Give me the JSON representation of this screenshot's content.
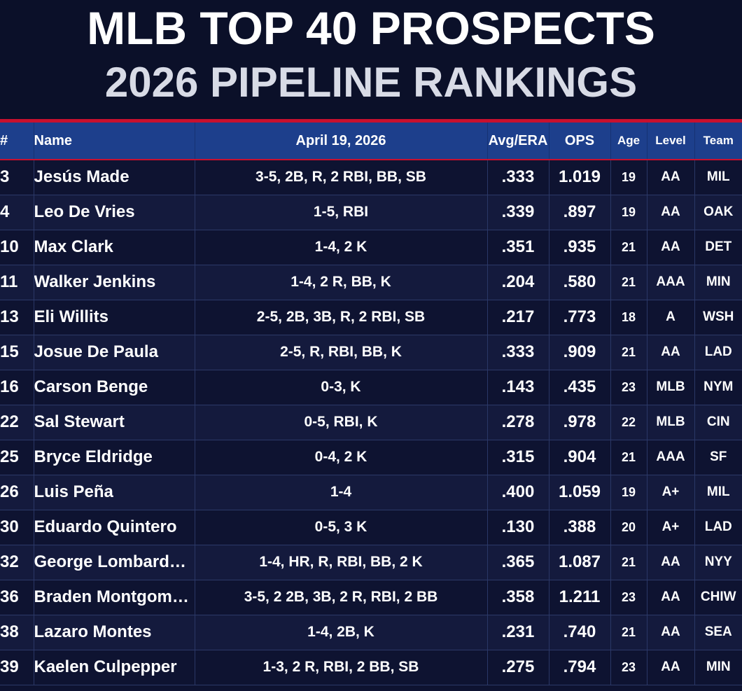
{
  "header": {
    "title_line1": "MLB TOP 40 PROSPECTS",
    "title_line2": "2026 PIPELINE RANKINGS"
  },
  "table": {
    "columns": {
      "rank": "#",
      "name": "Name",
      "date": "April 19, 2026",
      "avg": "Avg/ERA",
      "ops": "OPS",
      "age": "Age",
      "level": "Level",
      "team": "Team"
    },
    "rows": [
      {
        "rank": "3",
        "name": "Jesús Made",
        "line": "3-5, 2B, R, 2 RBI, BB, SB",
        "avg": ".333",
        "ops": "1.019",
        "age": "19",
        "level": "AA",
        "team": "MIL"
      },
      {
        "rank": "4",
        "name": "Leo De Vries",
        "line": "1-5, RBI",
        "avg": ".339",
        "ops": ".897",
        "age": "19",
        "level": "AA",
        "team": "OAK"
      },
      {
        "rank": "10",
        "name": "Max Clark",
        "line": "1-4, 2 K",
        "avg": ".351",
        "ops": ".935",
        "age": "21",
        "level": "AA",
        "team": "DET"
      },
      {
        "rank": "11",
        "name": "Walker Jenkins",
        "line": "1-4, 2 R, BB, K",
        "avg": ".204",
        "ops": ".580",
        "age": "21",
        "level": "AAA",
        "team": "MIN"
      },
      {
        "rank": "13",
        "name": "Eli Willits",
        "line": "2-5, 2B, 3B, R, 2 RBI, SB",
        "avg": ".217",
        "ops": ".773",
        "age": "18",
        "level": "A",
        "team": "WSH"
      },
      {
        "rank": "15",
        "name": "Josue De Paula",
        "line": "2-5, R, RBI, BB, K",
        "avg": ".333",
        "ops": ".909",
        "age": "21",
        "level": "AA",
        "team": "LAD"
      },
      {
        "rank": "16",
        "name": "Carson Benge",
        "line": "0-3, K",
        "avg": ".143",
        "ops": ".435",
        "age": "23",
        "level": "MLB",
        "team": "NYM"
      },
      {
        "rank": "22",
        "name": "Sal Stewart",
        "line": "0-5, RBI, K",
        "avg": ".278",
        "ops": ".978",
        "age": "22",
        "level": "MLB",
        "team": "CIN"
      },
      {
        "rank": "25",
        "name": "Bryce Eldridge",
        "line": "0-4, 2 K",
        "avg": ".315",
        "ops": ".904",
        "age": "21",
        "level": "AAA",
        "team": "SF"
      },
      {
        "rank": "26",
        "name": "Luis Peña",
        "line": "1-4",
        "avg": ".400",
        "ops": "1.059",
        "age": "19",
        "level": "A+",
        "team": "MIL"
      },
      {
        "rank": "30",
        "name": "Eduardo Quintero",
        "line": "0-5, 3 K",
        "avg": ".130",
        "ops": ".388",
        "age": "20",
        "level": "A+",
        "team": "LAD"
      },
      {
        "rank": "32",
        "name": "George Lombard…",
        "line": "1-4, HR, R, RBI, BB, 2 K",
        "avg": ".365",
        "ops": "1.087",
        "age": "21",
        "level": "AA",
        "team": "NYY"
      },
      {
        "rank": "36",
        "name": "Braden Montgom…",
        "line": "3-5, 2 2B, 3B, 2 R, RBI, 2 BB",
        "avg": ".358",
        "ops": "1.211",
        "age": "23",
        "level": "AA",
        "team": "CHIW"
      },
      {
        "rank": "38",
        "name": "Lazaro Montes",
        "line": "1-4, 2B, K",
        "avg": ".231",
        "ops": ".740",
        "age": "21",
        "level": "AA",
        "team": "SEA"
      },
      {
        "rank": "39",
        "name": "Kaelen Culpepper",
        "line": "1-3, 2 R, RBI, 2 BB, SB",
        "avg": ".275",
        "ops": ".794",
        "age": "23",
        "level": "AA",
        "team": "MIN"
      }
    ]
  },
  "colors": {
    "background": "#0b1029",
    "header_row": "#1d3f8c",
    "accent_red": "#c8102e",
    "row_odd": "#0e1331",
    "row_even": "#141a3d"
  }
}
